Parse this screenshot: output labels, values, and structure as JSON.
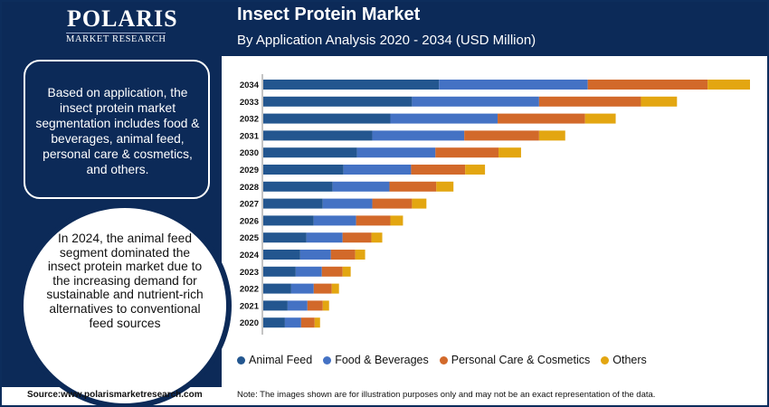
{
  "header": {
    "logo_word": "POLARIS",
    "logo_sub": "MARKET RESEARCH",
    "title": "Insect Protein Market",
    "subtitle": "By Application Analysis 2020 - 2034 (USD Million)"
  },
  "side": {
    "box_text": "Based on application, the insect protein market segmentation includes food & beverages, animal feed, personal care & cosmetics, and others.",
    "circle_text": "In 2024, the animal feed segment dominated the insect protein market due to the increasing demand for sustainable and nutrient-rich alternatives to conventional feed sources"
  },
  "footer": {
    "source": "Source:www.polarismarketresearch.com",
    "note": "Note: The images shown are for illustration purposes only and may not be an exact representation of the data."
  },
  "legend": {
    "items": [
      {
        "label": "Animal Feed",
        "color": "#23568f"
      },
      {
        "label": "Food & Beverages",
        "color": "#4472c4"
      },
      {
        "label": "Personal Care & Cosmetics",
        "color": "#d2692a"
      },
      {
        "label": "Others",
        "color": "#e3a611"
      }
    ]
  },
  "chart_data": {
    "type": "bar",
    "orientation": "horizontal",
    "stacked": true,
    "categories": [
      "2034",
      "2033",
      "2032",
      "2031",
      "2030",
      "2029",
      "2028",
      "2027",
      "2026",
      "2025",
      "2024",
      "2023",
      "2022",
      "2021",
      "2020"
    ],
    "series": [
      {
        "name": "Animal Feed",
        "color": "#23568f",
        "values": [
          195,
          165,
          141,
          121,
          104,
          89,
          77,
          66,
          56,
          48,
          41,
          36,
          31,
          27,
          24
        ]
      },
      {
        "name": "Food & Beverages",
        "color": "#4472c4",
        "values": [
          165,
          141,
          119,
          102,
          87,
          75,
          63,
          55,
          47,
          40,
          34,
          29,
          25,
          22,
          18
        ]
      },
      {
        "name": "Personal Care & Cosmetics",
        "color": "#d2692a",
        "values": [
          133,
          113,
          97,
          83,
          70,
          60,
          52,
          44,
          38,
          32,
          27,
          23,
          20,
          17,
          15
        ]
      },
      {
        "name": "Others",
        "color": "#e3a611",
        "values": [
          47,
          40,
          34,
          29,
          25,
          22,
          19,
          16,
          14,
          12,
          11,
          9,
          8,
          7,
          6
        ]
      }
    ]
  }
}
